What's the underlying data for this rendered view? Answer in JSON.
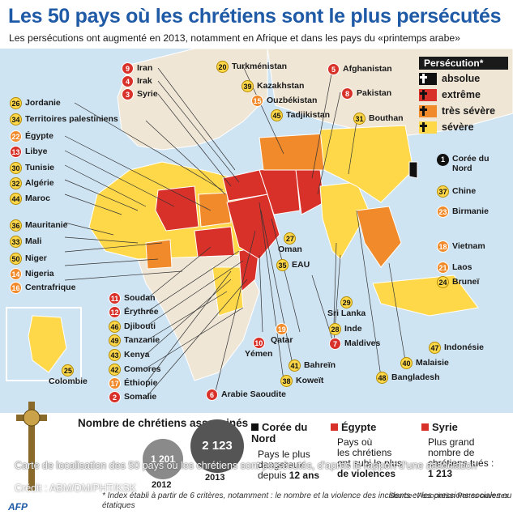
{
  "title": "Les 50 pays où les chrétiens sont le plus persécutés",
  "subtitle": "Les persécutions ont augmenté en 2013, notamment en Afrique et dans les pays du «printemps arabe»",
  "legend": {
    "title": "Persécution*",
    "items": [
      {
        "label": "absolue",
        "color": "#111111"
      },
      {
        "label": "extrême",
        "color": "#d8312a"
      },
      {
        "label": "très sévère",
        "color": "#f08a2a"
      },
      {
        "label": "sévère",
        "color": "#ffd84a"
      }
    ]
  },
  "countries": [
    {
      "rank": "9",
      "name": "Iran",
      "level": "ext"
    },
    {
      "rank": "4",
      "name": "Irak",
      "level": "ext"
    },
    {
      "rank": "3",
      "name": "Syrie",
      "level": "ext"
    },
    {
      "rank": "20",
      "name": "Turkménistan",
      "level": "sev"
    },
    {
      "rank": "39",
      "name": "Kazakhstan",
      "level": "sev"
    },
    {
      "rank": "15",
      "name": "Ouzbékistan",
      "level": "tsv"
    },
    {
      "rank": "45",
      "name": "Tadjikistan",
      "level": "sev"
    },
    {
      "rank": "5",
      "name": "Afghanistan",
      "level": "ext"
    },
    {
      "rank": "8",
      "name": "Pakistan",
      "level": "ext"
    },
    {
      "rank": "31",
      "name": "Bouthan",
      "level": "sev"
    },
    {
      "rank": "26",
      "name": "Jordanie",
      "level": "sev"
    },
    {
      "rank": "34",
      "name": "Territoires palestiniens",
      "level": "sev"
    },
    {
      "rank": "22",
      "name": "Égypte",
      "level": "tsv"
    },
    {
      "rank": "13",
      "name": "Libye",
      "level": "ext"
    },
    {
      "rank": "30",
      "name": "Tunisie",
      "level": "sev"
    },
    {
      "rank": "32",
      "name": "Algérie",
      "level": "sev"
    },
    {
      "rank": "44",
      "name": "Maroc",
      "level": "sev"
    },
    {
      "rank": "1",
      "name": "Corée du Nord",
      "level": "abs"
    },
    {
      "rank": "37",
      "name": "Chine",
      "level": "sev"
    },
    {
      "rank": "23",
      "name": "Birmanie",
      "level": "tsv"
    },
    {
      "rank": "36",
      "name": "Mauritanie",
      "level": "sev"
    },
    {
      "rank": "33",
      "name": "Mali",
      "level": "sev"
    },
    {
      "rank": "50",
      "name": "Niger",
      "level": "sev"
    },
    {
      "rank": "14",
      "name": "Nigeria",
      "level": "tsv"
    },
    {
      "rank": "16",
      "name": "Centrafrique",
      "level": "tsv"
    },
    {
      "rank": "27",
      "name": "Oman",
      "level": "sev"
    },
    {
      "rank": "35",
      "name": "EAU",
      "level": "sev"
    },
    {
      "rank": "18",
      "name": "Vietnam",
      "level": "tsv"
    },
    {
      "rank": "21",
      "name": "Laos",
      "level": "tsv"
    },
    {
      "rank": "24",
      "name": "Bruneï",
      "level": "sev"
    },
    {
      "rank": "11",
      "name": "Soudan",
      "level": "ext"
    },
    {
      "rank": "12",
      "name": "Érythrée",
      "level": "ext"
    },
    {
      "rank": "46",
      "name": "Djibouti",
      "level": "sev"
    },
    {
      "rank": "49",
      "name": "Tanzanie",
      "level": "sev"
    },
    {
      "rank": "43",
      "name": "Kenya",
      "level": "sev"
    },
    {
      "rank": "42",
      "name": "Comores",
      "level": "sev"
    },
    {
      "rank": "17",
      "name": "Éthiopie",
      "level": "tsv"
    },
    {
      "rank": "2",
      "name": "Somalie",
      "level": "ext"
    },
    {
      "rank": "6",
      "name": "Arabie Saoudite",
      "level": "ext"
    },
    {
      "rank": "10",
      "name": "Yémen",
      "level": "ext"
    },
    {
      "rank": "19",
      "name": "Qatar",
      "level": "tsv"
    },
    {
      "rank": "41",
      "name": "Bahreïn",
      "level": "sev"
    },
    {
      "rank": "38",
      "name": "Koweït",
      "level": "sev"
    },
    {
      "rank": "29",
      "name": "Sri Lanka",
      "level": "sev"
    },
    {
      "rank": "28",
      "name": "Inde",
      "level": "sev"
    },
    {
      "rank": "7",
      "name": "Maldives",
      "level": "ext"
    },
    {
      "rank": "47",
      "name": "Indonésie",
      "level": "sev"
    },
    {
      "rank": "40",
      "name": "Malaisie",
      "level": "sev"
    },
    {
      "rank": "48",
      "name": "Bangladesh",
      "level": "sev"
    },
    {
      "rank": "25",
      "name": "Colombie",
      "level": "sev"
    }
  ],
  "stats": {
    "title": "Nombre de chrétiens assassinés",
    "values": [
      {
        "year": "2012",
        "value": "1 201"
      },
      {
        "year": "2013",
        "value": "2 123"
      }
    ]
  },
  "highlights": [
    {
      "country": "Corée du Nord",
      "text": "Pays le plus",
      "text2": "dangereux",
      "text3": "depuis",
      "bold": "12 ans",
      "color": "#111111"
    },
    {
      "country": "Égypte",
      "text": "Pays où",
      "text2": "les chrétiens",
      "text3": "ont subi le plus",
      "bold": "de violences",
      "color": "#d8312a"
    },
    {
      "country": "Syrie",
      "text": "Plus grand",
      "text2": "nombre de",
      "text3": "chrétiens tués :",
      "bold": "1 213",
      "color": "#d8312a"
    }
  ],
  "caption": "Carte de localisation des 50 pays où les chrétiens sont persécutés, d'après le rapport d'une association",
  "credit": "Crédit : ABM/DM/PHT/KSK",
  "note": "* Index établi à partir de 6 critères, notamment : le nombre et la violence des incidents et les pressions sociales ou étatiques",
  "source": "Source : Association Portes ouvertes",
  "logo": "AFP"
}
